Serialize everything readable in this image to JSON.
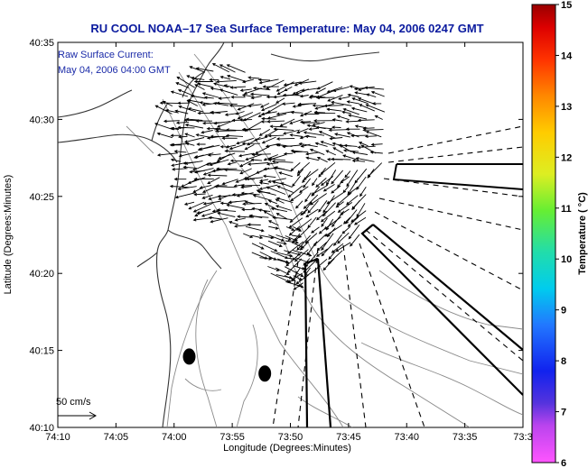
{
  "title": "RU COOL  NOAA–17  Sea Surface Temperature:  May 04, 2006 0247 GMT",
  "annotation": {
    "line1": "Raw Surface Current:",
    "line2": "May 04, 2006 04:00 GMT"
  },
  "scale_label": "50 cm/s",
  "colors": {
    "title": "#0a1a9e",
    "annotation": "#1a2aa8"
  },
  "chart_data": {
    "type": "map",
    "xlabel": "Longitude (Degrees:Minutes)",
    "ylabel": "Latitude (Degrees:Minutes)",
    "x_ticks": [
      "74:10",
      "74:05",
      "74:00",
      "73:55",
      "73:50",
      "73:45",
      "73:40",
      "73:35",
      "73:3"
    ],
    "y_ticks": [
      "40:10",
      "40:15",
      "40:20",
      "40:25",
      "40:30",
      "40:35"
    ],
    "xlim_min": [
      -130,
      -90
    ],
    "ylim_min": [
      10,
      35
    ],
    "colorbar": {
      "label": "Temperature ( °C)",
      "ticks": [
        "15",
        "14",
        "13",
        "12",
        "11",
        "10",
        "9",
        "8",
        "7",
        "6"
      ],
      "range": [
        6,
        15
      ]
    },
    "buoys": [
      {
        "lon_min": -118.7,
        "lat_min": 14.6
      },
      {
        "lon_min": -112.2,
        "lat_min": 13.5
      }
    ]
  }
}
